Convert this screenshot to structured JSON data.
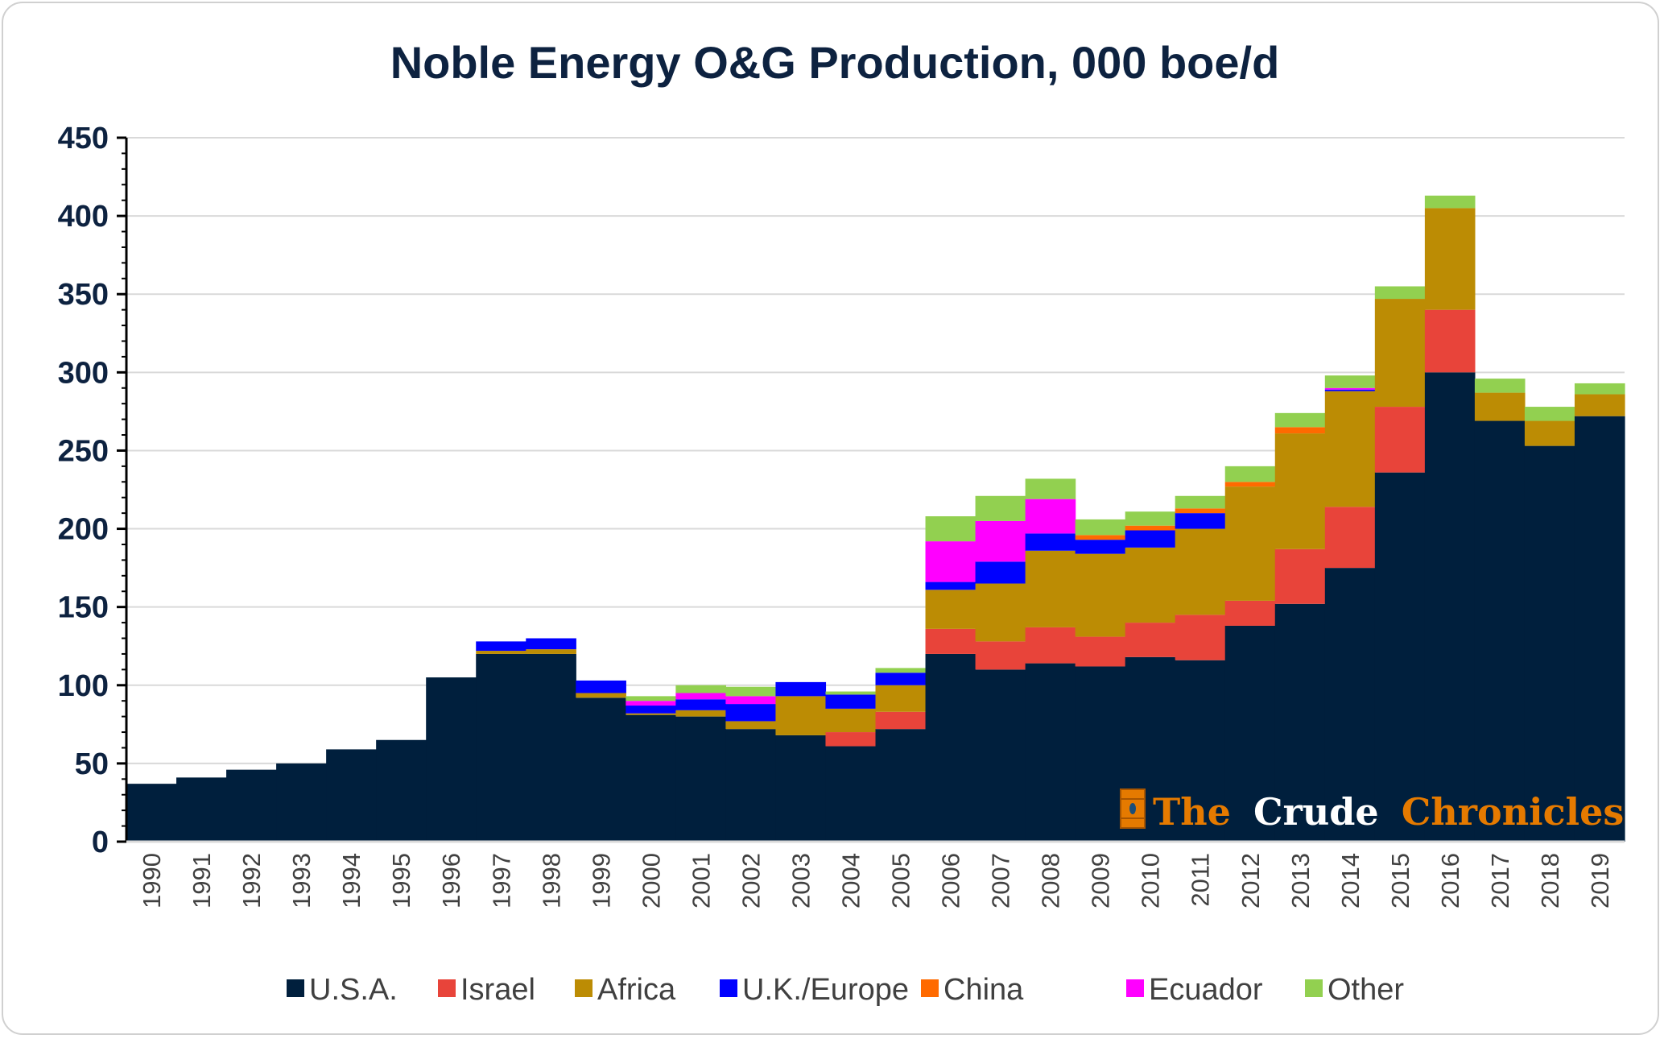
{
  "chart_data": {
    "type": "bar",
    "stacked": true,
    "title": "Noble Energy O&G Production, 000 boe/d",
    "xlabel": "",
    "ylabel": "",
    "ylim": [
      0,
      450
    ],
    "yticks": [
      "0",
      "50",
      "100",
      "150",
      "200",
      "250",
      "300",
      "350",
      "400",
      "450"
    ],
    "grid": true,
    "legend_position": "bottom",
    "categories": [
      "1990",
      "1991",
      "1992",
      "1993",
      "1994",
      "1995",
      "1996",
      "1997",
      "1998",
      "1999",
      "2000",
      "2001",
      "2002",
      "2003",
      "2004",
      "2005",
      "2006",
      "2007",
      "2008",
      "2009",
      "2010",
      "2011",
      "2012",
      "2013",
      "2014",
      "2015",
      "2016",
      "2017",
      "2018",
      "2019"
    ],
    "series": [
      {
        "name": "U.S.A.",
        "color": "#001f3d",
        "values": [
          37,
          41,
          46,
          50,
          59,
          65,
          105,
          120,
          120,
          92,
          81,
          80,
          72,
          68,
          61,
          72,
          120,
          110,
          114,
          112,
          118,
          116,
          138,
          152,
          175,
          236,
          300,
          269,
          253,
          272
        ]
      },
      {
        "name": "Israel",
        "color": "#e8443a",
        "values": [
          0,
          0,
          0,
          0,
          0,
          0,
          0,
          0,
          0,
          0,
          0,
          0,
          0,
          0,
          9,
          11,
          16,
          18,
          23,
          19,
          22,
          29,
          16,
          35,
          39,
          42,
          40,
          0,
          0,
          0
        ]
      },
      {
        "name": "Africa",
        "color": "#bc8c04",
        "values": [
          0,
          0,
          0,
          0,
          0,
          0,
          0,
          2,
          3,
          3,
          1,
          4,
          5,
          25,
          15,
          17,
          25,
          37,
          49,
          53,
          48,
          55,
          73,
          74,
          74,
          69,
          65,
          18,
          16,
          14
        ]
      },
      {
        "name": "U.K./Europe",
        "color": "#0000ff",
        "values": [
          0,
          0,
          0,
          0,
          0,
          0,
          0,
          6,
          7,
          8,
          5,
          7,
          11,
          9,
          9,
          8,
          5,
          14,
          11,
          9,
          11,
          10,
          0,
          0,
          1,
          0,
          0,
          0,
          0,
          0
        ]
      },
      {
        "name": "China",
        "color": "#ff6a00",
        "values": [
          0,
          0,
          0,
          0,
          0,
          0,
          0,
          0,
          0,
          0,
          0,
          0,
          0,
          0,
          0,
          0,
          0,
          0,
          0,
          3,
          3,
          3,
          3,
          4,
          0,
          0,
          0,
          0,
          0,
          0
        ]
      },
      {
        "name": "Ecuador",
        "color": "#ff00ff",
        "values": [
          0,
          0,
          0,
          0,
          0,
          0,
          0,
          0,
          0,
          0,
          3,
          4,
          5,
          0,
          0,
          0,
          26,
          26,
          22,
          0,
          0,
          0,
          0,
          0,
          1,
          0,
          0,
          0,
          0,
          0
        ]
      },
      {
        "name": "Other",
        "color": "#92d050",
        "values": [
          0,
          0,
          0,
          0,
          0,
          0,
          0,
          0,
          0,
          0,
          3,
          5,
          6,
          0,
          2,
          3,
          16,
          16,
          13,
          10,
          9,
          8,
          10,
          9,
          8,
          8,
          8,
          9,
          9,
          7
        ]
      }
    ]
  },
  "watermark": {
    "part1": "The",
    "part2": "Crude",
    "part3": "Chronicles",
    "orange": "#e57a00"
  }
}
